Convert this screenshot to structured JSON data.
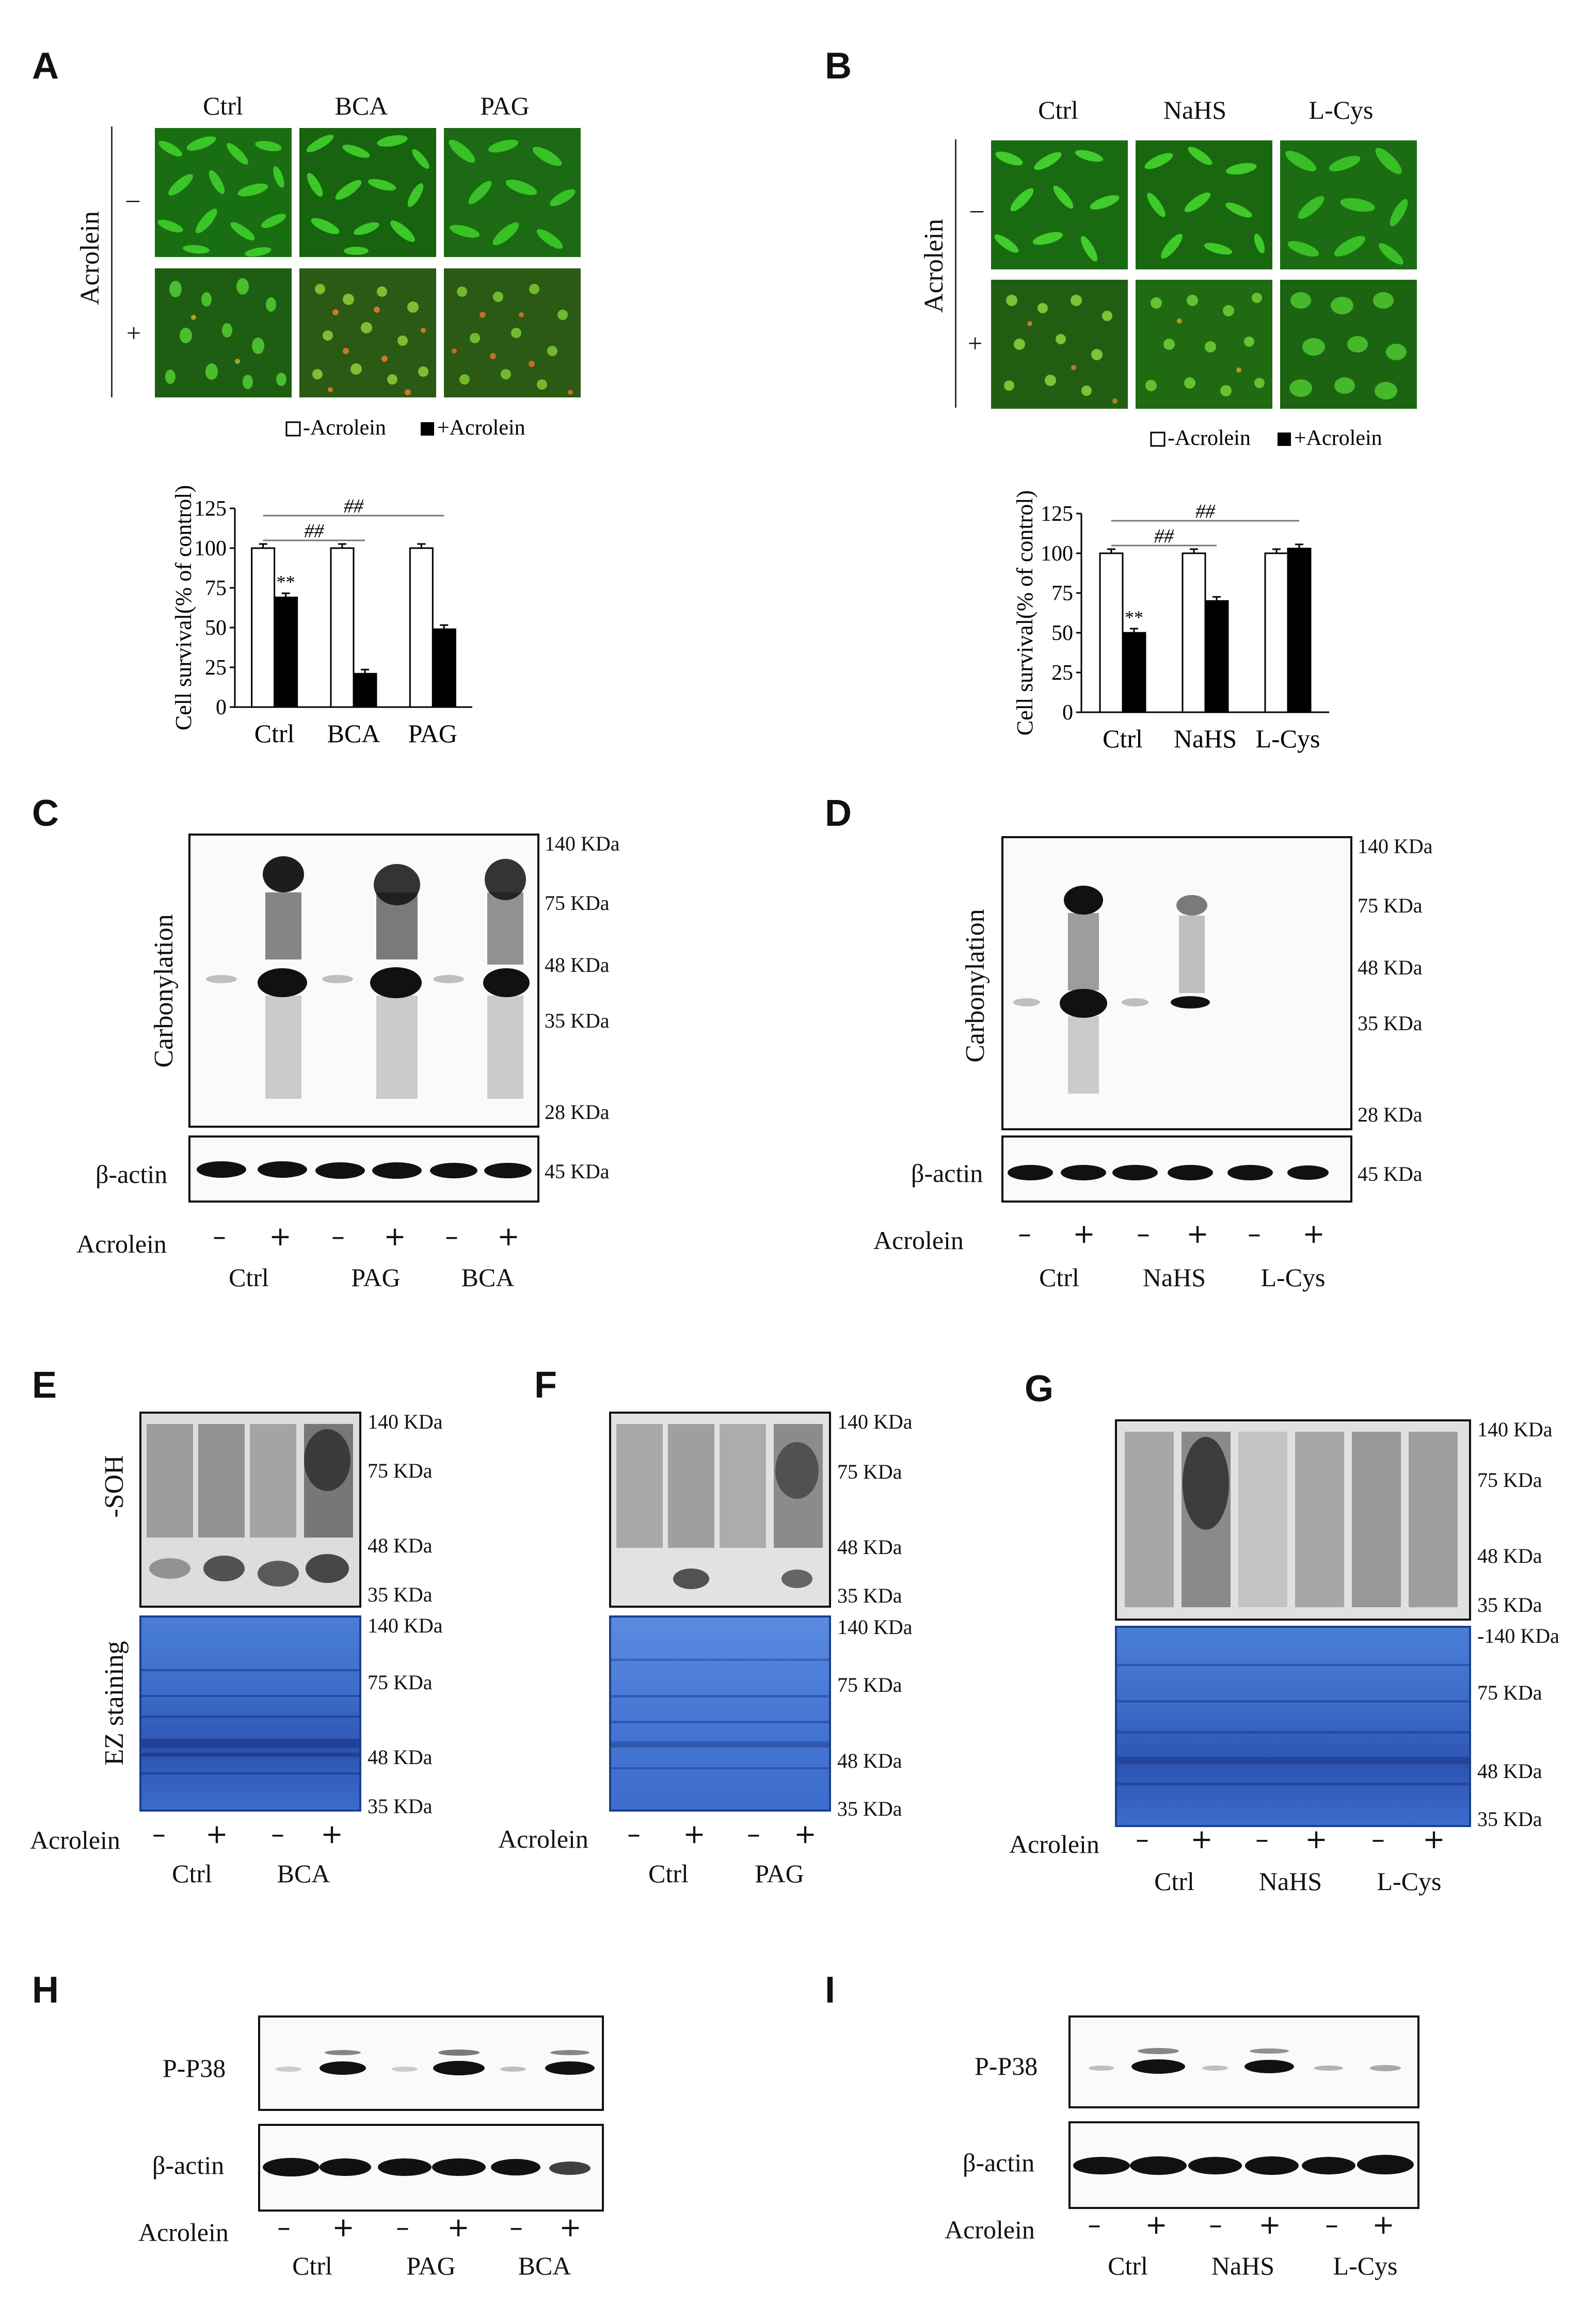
{
  "panels": {
    "A": "A",
    "B": "B",
    "C": "C",
    "D": "D",
    "E": "E",
    "F": "F",
    "G": "G",
    "H": "H",
    "I": "I"
  },
  "acrolein_label": "Acrolein",
  "minus": "–",
  "plus": "+",
  "micro_minus": "–",
  "micro_plus": "+",
  "panelA": {
    "cols": [
      "Ctrl",
      "BCA",
      "PAG"
    ]
  },
  "panelB": {
    "cols": [
      "Ctrl",
      "NaHS",
      "L-Cys"
    ]
  },
  "legend": {
    "neg": "-Acrolein",
    "pos": "+Acrolein"
  },
  "sig": {
    "star": "**",
    "hash": "##"
  },
  "ylabel": "Cell survival(% of control)",
  "chart_data": [
    {
      "type": "bar",
      "categories": [
        "Ctrl",
        "BCA",
        "PAG"
      ],
      "series": [
        {
          "name": "-Acrolein",
          "values": [
            100,
            100,
            100
          ]
        },
        {
          "name": "+Acrolein",
          "values": [
            69,
            21,
            49
          ]
        }
      ],
      "ylabel": "Cell survival(% of control)",
      "ylim": [
        0,
        125
      ],
      "yticks": [
        0,
        25,
        50,
        75,
        100,
        125
      ],
      "colors": {
        "neg": "#ffffff",
        "pos": "#000000"
      }
    },
    {
      "type": "bar",
      "categories": [
        "Ctrl",
        "NaHS",
        "L-Cys"
      ],
      "series": [
        {
          "name": "-Acrolein",
          "values": [
            100,
            100,
            100
          ]
        },
        {
          "name": "+Acrolein",
          "values": [
            50,
            70,
            103
          ]
        }
      ],
      "ylabel": "Cell survival(% of control)",
      "ylim": [
        0,
        125
      ],
      "yticks": [
        0,
        25,
        50,
        75,
        100,
        125
      ],
      "colors": {
        "neg": "#ffffff",
        "pos": "#000000"
      }
    }
  ],
  "blots": {
    "carbonylation": "Carbonylation",
    "bactin": "β-actin",
    "soh": "-SOH",
    "ez": "EZ staining",
    "pp38": "P-P38"
  },
  "markers": {
    "c": [
      "140 KDa",
      "75 KDa",
      "48 KDa",
      "35 KDa",
      "28 KDa"
    ],
    "actin": "45 KDa",
    "e_top": [
      "140 KDa",
      "75 KDa",
      "48 KDa",
      "35 KDa"
    ],
    "e_bot": [
      "140 KDa",
      "75 KDa",
      "48 KDa",
      "35 KDa"
    ],
    "g_bot_first": "-140 KDa"
  },
  "groups": {
    "C": [
      "Ctrl",
      "PAG",
      "BCA"
    ],
    "D": [
      "Ctrl",
      "NaHS",
      "L-Cys"
    ],
    "E": [
      "Ctrl",
      "BCA"
    ],
    "F": [
      "Ctrl",
      "PAG"
    ],
    "G": [
      "Ctrl",
      "NaHS",
      "L-Cys"
    ],
    "H": [
      "Ctrl",
      "PAG",
      "BCA"
    ],
    "I": [
      "Ctrl",
      "NaHS",
      "L-Cys"
    ]
  }
}
